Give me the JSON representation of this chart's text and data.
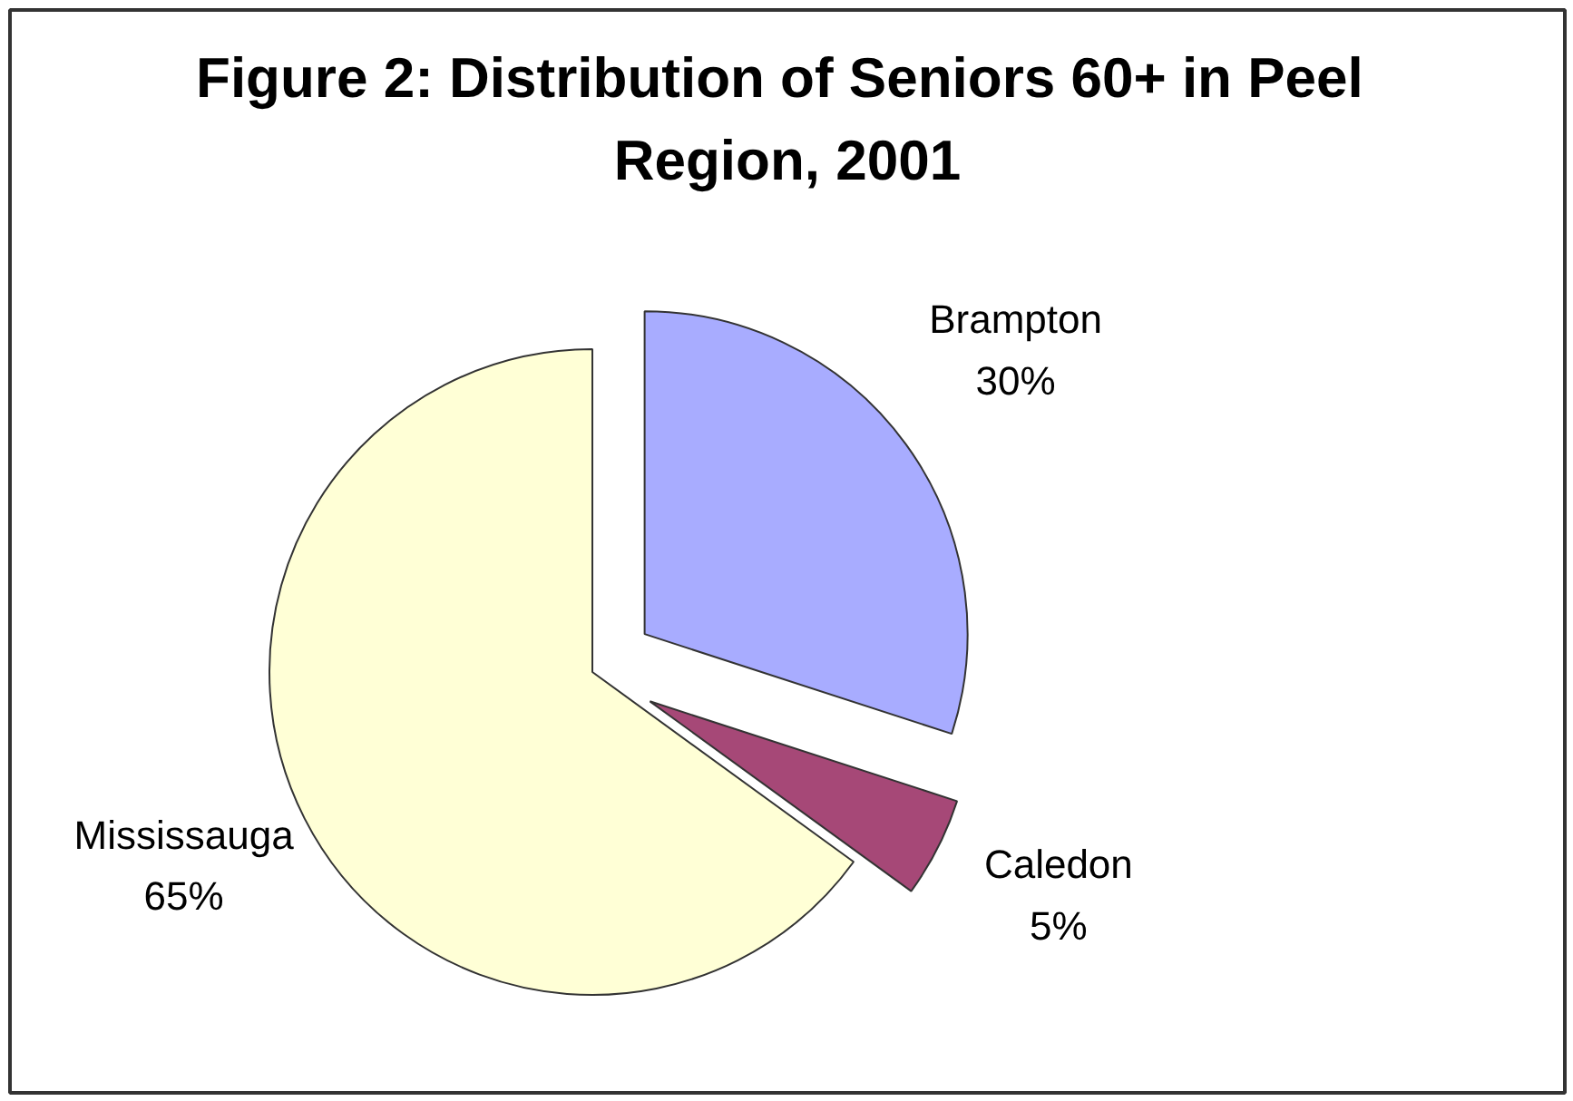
{
  "chart_data": {
    "type": "pie",
    "title": "Figure 2:  Distribution of Seniors 60+ in Peel Region, 2001",
    "categories": [
      "Brampton",
      "Caledon",
      "Mississauga"
    ],
    "values": [
      30,
      5,
      65
    ],
    "colors": [
      "#a8acff",
      "#a64877",
      "#ffffd6"
    ],
    "value_labels": [
      "30%",
      "5%",
      "65%"
    ]
  }
}
